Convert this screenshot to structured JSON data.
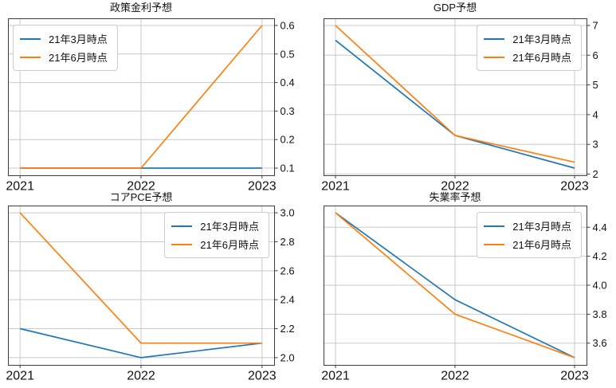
{
  "figure": {
    "background": "#ffffff"
  },
  "colors": {
    "palette": [
      "#1f77b4",
      "#ff7f0e"
    ],
    "grid": "#c8c8c8",
    "spine": "#3d3d3d",
    "text": "#111111",
    "legend_border": "#cccccc"
  },
  "legend": {
    "labels": [
      "21年3月時点",
      "21年6月時点"
    ]
  },
  "chart_data": [
    {
      "type": "line",
      "title": "政策金利予想",
      "x": [
        2021,
        2022,
        2023
      ],
      "x_labels": [
        "2021",
        "2022",
        "2023"
      ],
      "xlim": [
        2020.9,
        2023.1
      ],
      "series": [
        {
          "name": "21年3月時点",
          "values": [
            0.1,
            0.1,
            0.1
          ]
        },
        {
          "name": "21年6月時点",
          "values": [
            0.1,
            0.1,
            0.6
          ]
        }
      ],
      "yticks": [
        0.1,
        0.2,
        0.3,
        0.4,
        0.5,
        0.6
      ],
      "ytick_labels": [
        "0.1",
        "0.2",
        "0.3",
        "0.4",
        "0.5",
        "0.6"
      ],
      "ylim": [
        0.075,
        0.625
      ],
      "yaxis_side": "right",
      "grid": true,
      "legend_position": "upper left"
    },
    {
      "type": "line",
      "title": "GDP予想",
      "x": [
        2021,
        2022,
        2023
      ],
      "x_labels": [
        "2021",
        "2022",
        "2023"
      ],
      "xlim": [
        2020.9,
        2023.1
      ],
      "series": [
        {
          "name": "21年3月時点",
          "values": [
            6.5,
            3.3,
            2.2
          ]
        },
        {
          "name": "21年6月時点",
          "values": [
            7.0,
            3.3,
            2.4
          ]
        }
      ],
      "yticks": [
        2,
        3,
        4,
        5,
        6,
        7
      ],
      "ytick_labels": [
        "2",
        "3",
        "4",
        "5",
        "6",
        "7"
      ],
      "ylim": [
        1.96,
        7.24
      ],
      "yaxis_side": "right",
      "grid": true,
      "legend_position": "upper right"
    },
    {
      "type": "line",
      "title": "コアPCE予想",
      "x": [
        2021,
        2022,
        2023
      ],
      "x_labels": [
        "2021",
        "2022",
        "2023"
      ],
      "xlim": [
        2020.9,
        2023.1
      ],
      "series": [
        {
          "name": "21年3月時点",
          "values": [
            2.2,
            2.0,
            2.1
          ]
        },
        {
          "name": "21年6月時点",
          "values": [
            3.0,
            2.1,
            2.1
          ]
        }
      ],
      "yticks": [
        2.0,
        2.2,
        2.4,
        2.6,
        2.8,
        3.0
      ],
      "ytick_labels": [
        "2.0",
        "2.2",
        "2.4",
        "2.6",
        "2.8",
        "3.0"
      ],
      "ylim": [
        1.95,
        3.05
      ],
      "yaxis_side": "right",
      "grid": true,
      "legend_position": "upper right"
    },
    {
      "type": "line",
      "title": "失業率予想",
      "x": [
        2021,
        2022,
        2023
      ],
      "x_labels": [
        "2021",
        "2022",
        "2023"
      ],
      "xlim": [
        2020.9,
        2023.1
      ],
      "series": [
        {
          "name": "21年3月時点",
          "values": [
            4.5,
            3.9,
            3.5
          ]
        },
        {
          "name": "21年6月時点",
          "values": [
            4.5,
            3.8,
            3.5
          ]
        }
      ],
      "yticks": [
        3.6,
        3.8,
        4.0,
        4.2,
        4.4
      ],
      "ytick_labels": [
        "3.6",
        "3.8",
        "4.0",
        "4.2",
        "4.4"
      ],
      "ylim": [
        3.45,
        4.55
      ],
      "yaxis_side": "right",
      "grid": true,
      "legend_position": "upper right"
    }
  ]
}
